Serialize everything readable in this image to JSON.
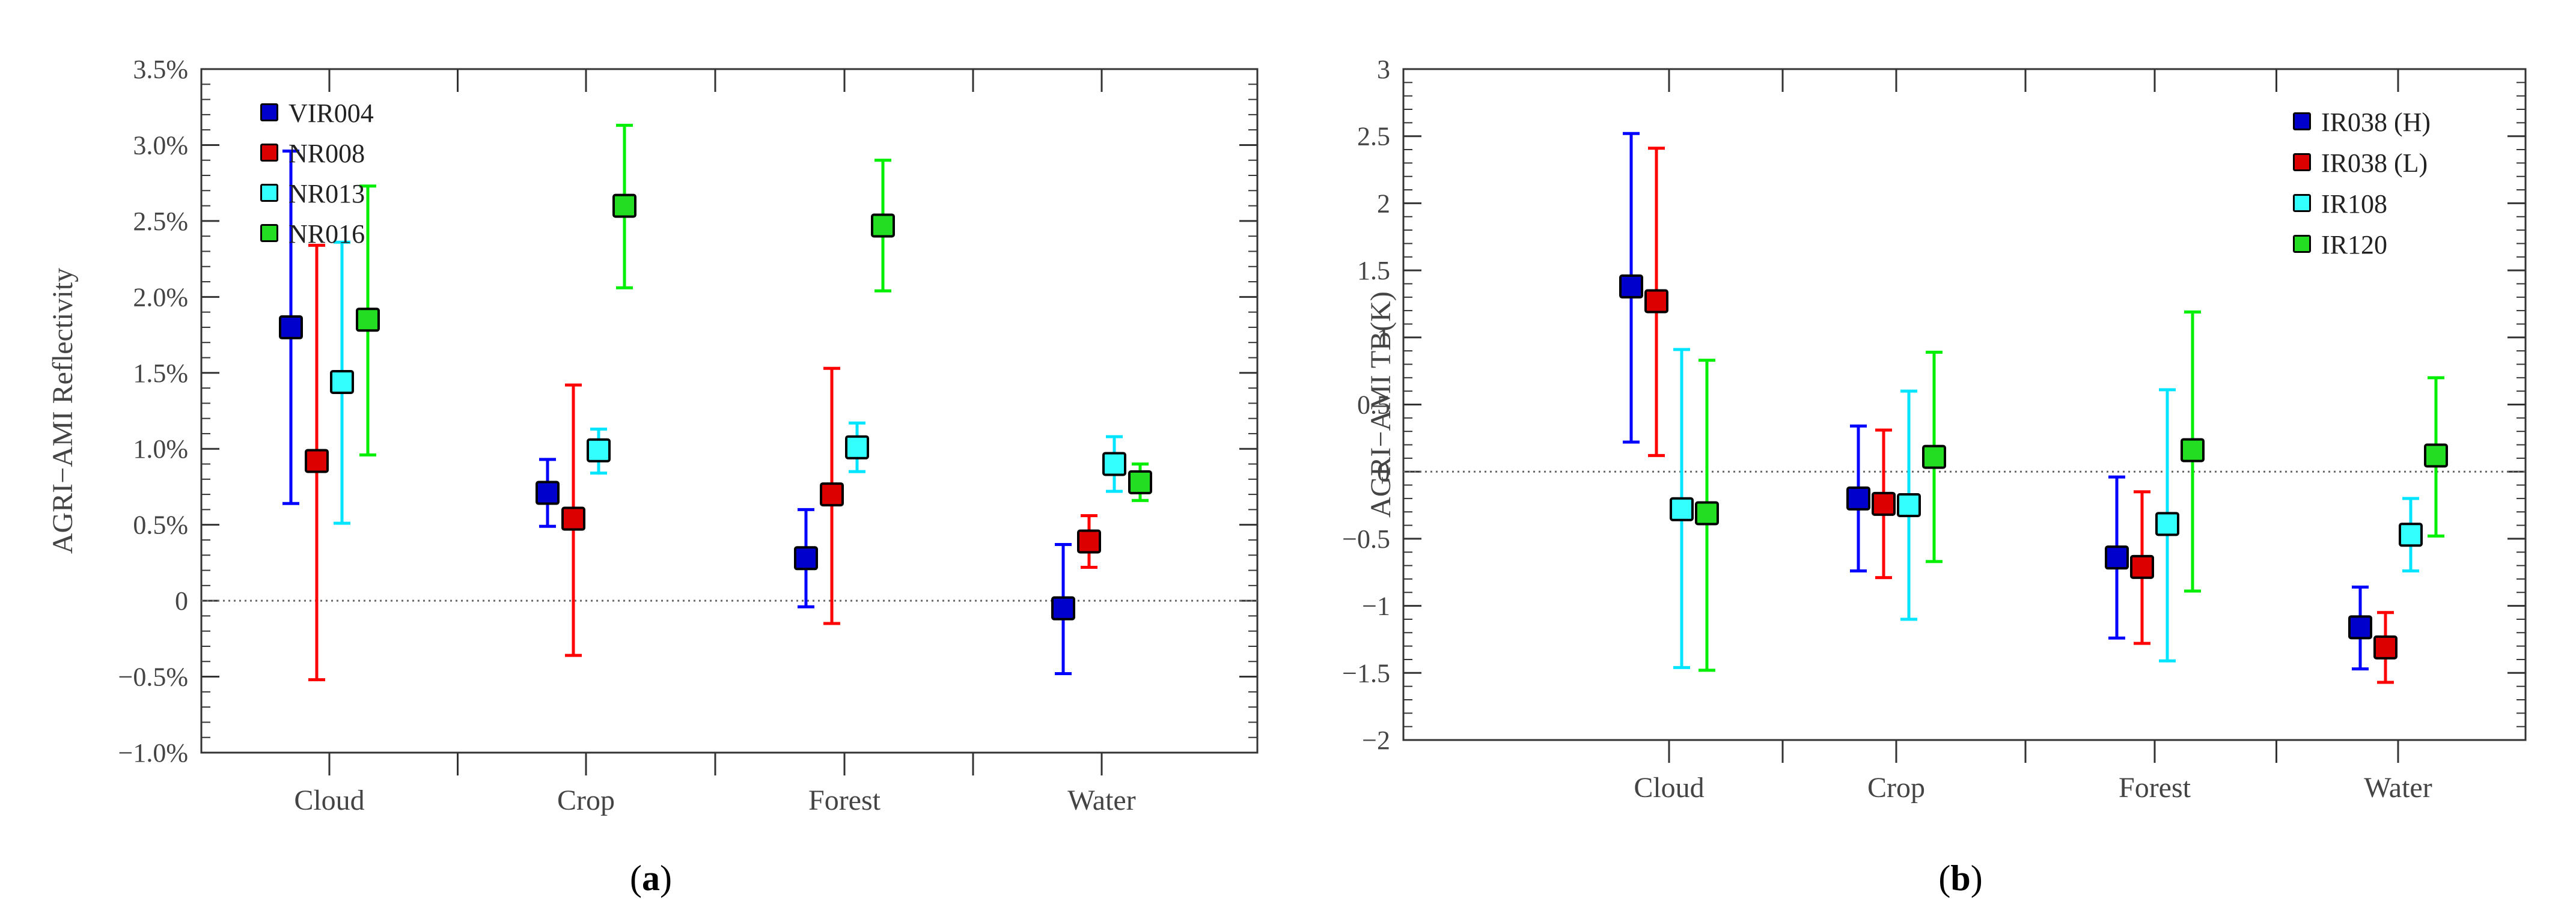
{
  "chart_data": [
    {
      "type": "scatter",
      "subtype": "error-bar",
      "panel_label": "a",
      "ylabel": "AGRI−AMI Reflectivity",
      "xlabel": "",
      "ylim": [
        -1.0,
        3.5
      ],
      "y_ticks": [
        -1.0,
        -0.5,
        0,
        0.5,
        1.0,
        1.5,
        2.0,
        2.5,
        3.0,
        3.5
      ],
      "y_tick_labels": [
        "−1.0%",
        "−0.5%",
        "0",
        "0.5%",
        "1.0%",
        "1.5%",
        "2.0%",
        "2.5%",
        "3.0%",
        "3.5%"
      ],
      "categories": [
        "Cloud",
        "Crop",
        "Forest",
        "Water"
      ],
      "zero_line": "dotted",
      "legend_position": "top-left",
      "series": [
        {
          "name": "VIR004",
          "color": "#0000ff",
          "fill": "#0000cc",
          "values": [
            1.8,
            0.71,
            0.28,
            -0.05
          ],
          "lower": [
            0.64,
            0.49,
            -0.04,
            -0.48
          ],
          "upper": [
            2.96,
            0.93,
            0.6,
            0.37
          ]
        },
        {
          "name": "NR008",
          "color": "#ff0000",
          "fill": "#dd0000",
          "values": [
            0.92,
            0.54,
            0.7,
            0.39
          ],
          "lower": [
            -0.52,
            -0.36,
            -0.15,
            0.22
          ],
          "upper": [
            2.34,
            1.42,
            1.53,
            0.56
          ]
        },
        {
          "name": "NR013",
          "color": "#00e5ff",
          "fill": "#33ffff",
          "values": [
            1.44,
            0.99,
            1.01,
            0.9
          ],
          "lower": [
            0.51,
            0.84,
            0.85,
            0.72
          ],
          "upper": [
            2.36,
            1.13,
            1.17,
            1.08
          ]
        },
        {
          "name": "NR016",
          "color": "#00ee00",
          "fill": "#22dd22",
          "values": [
            1.85,
            2.6,
            2.47,
            0.78
          ],
          "lower": [
            0.96,
            2.06,
            2.04,
            0.66
          ],
          "upper": [
            2.73,
            3.13,
            2.9,
            0.9
          ]
        }
      ]
    },
    {
      "type": "scatter",
      "subtype": "error-bar",
      "panel_label": "b",
      "ylabel": "AGRI−AMI TB(K)",
      "xlabel": "",
      "ylim": [
        -2,
        3
      ],
      "y_ticks": [
        -2,
        -1.5,
        -1,
        -0.5,
        0,
        0.5,
        1,
        1.5,
        2,
        2.5,
        3
      ],
      "y_tick_labels": [
        "−2",
        "−1.5",
        "−1",
        "−0.5",
        "0",
        "0.5",
        "1",
        "1.5",
        "2",
        "2.5",
        "3"
      ],
      "categories": [
        "Cloud",
        "Crop",
        "Forest",
        "Water"
      ],
      "zero_line": "dotted",
      "legend_position": "top-right",
      "series": [
        {
          "name": "IR038 (H)",
          "color": "#0000ff",
          "fill": "#0000cc",
          "values": [
            1.38,
            -0.2,
            -0.64,
            -1.16
          ],
          "lower": [
            0.22,
            -0.74,
            -1.24,
            -1.47
          ],
          "upper": [
            2.52,
            0.34,
            -0.04,
            -0.86
          ]
        },
        {
          "name": "IR038 (L)",
          "color": "#ff0000",
          "fill": "#dd0000",
          "values": [
            1.27,
            -0.24,
            -0.71,
            -1.31
          ],
          "lower": [
            0.12,
            -0.79,
            -1.28,
            -1.57
          ],
          "upper": [
            2.41,
            0.31,
            -0.15,
            -1.05
          ]
        },
        {
          "name": "IR108",
          "color": "#00e5ff",
          "fill": "#33ffff",
          "values": [
            -0.28,
            -0.25,
            -0.39,
            -0.47
          ],
          "lower": [
            -1.46,
            -1.1,
            -1.41,
            -0.74
          ],
          "upper": [
            0.91,
            0.6,
            0.61,
            -0.2
          ]
        },
        {
          "name": "IR120",
          "color": "#00ee00",
          "fill": "#22dd22",
          "values": [
            -0.31,
            0.11,
            0.16,
            0.12
          ],
          "lower": [
            -1.48,
            -0.67,
            -0.89,
            -0.48
          ],
          "upper": [
            0.83,
            0.89,
            1.19,
            0.7
          ]
        }
      ]
    }
  ]
}
